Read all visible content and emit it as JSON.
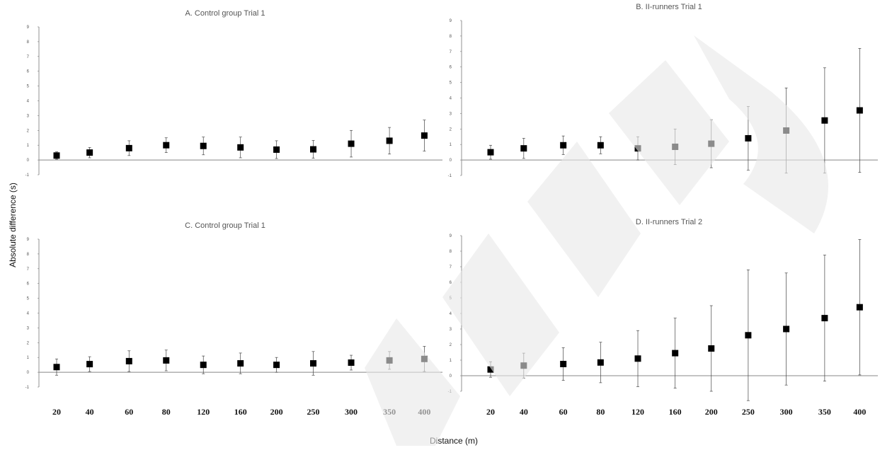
{
  "chart_data": {
    "type": "scatter",
    "layout": "2x2 panels",
    "ylabel": "Absolute difference (s)",
    "xlabel": "Distance (m)",
    "categories": [
      "20",
      "40",
      "60",
      "80",
      "120",
      "160",
      "200",
      "250",
      "300",
      "350",
      "400"
    ],
    "ylim": [
      -1,
      9
    ],
    "yticks": [
      -1,
      0,
      1,
      2,
      3,
      4,
      5,
      6,
      7,
      8,
      9
    ],
    "marker_color": "#000000",
    "zero_line_color": "#888888",
    "panels": [
      {
        "title": "A. Control group Trial 1",
        "values": [
          0.3,
          0.5,
          0.8,
          1.0,
          0.95,
          0.85,
          0.7,
          0.72,
          1.1,
          1.3,
          1.65
        ],
        "errors": [
          0.25,
          0.35,
          0.5,
          0.5,
          0.6,
          0.7,
          0.6,
          0.6,
          0.9,
          0.9,
          1.05
        ]
      },
      {
        "title": "B. II-runners Trial 1",
        "values": [
          0.5,
          0.75,
          0.95,
          0.95,
          0.75,
          0.85,
          1.05,
          1.4,
          1.9,
          2.55,
          3.2
        ],
        "errors": [
          0.45,
          0.65,
          0.6,
          0.55,
          0.75,
          1.15,
          1.55,
          2.05,
          2.75,
          3.4,
          4.0
        ]
      },
      {
        "title": "C. Control group Trial 1",
        "values": [
          0.35,
          0.55,
          0.75,
          0.8,
          0.5,
          0.6,
          0.5,
          0.6,
          0.65,
          0.8,
          0.9
        ],
        "errors": [
          0.55,
          0.5,
          0.7,
          0.7,
          0.6,
          0.7,
          0.5,
          0.8,
          0.5,
          0.6,
          0.85
        ]
      },
      {
        "title": "D. II-runners Trial 2",
        "values": [
          0.4,
          0.65,
          0.75,
          0.85,
          1.1,
          1.45,
          1.75,
          2.6,
          3.0,
          3.7,
          4.4
        ],
        "errors": [
          0.5,
          0.8,
          1.05,
          1.3,
          1.8,
          2.25,
          2.75,
          4.2,
          3.6,
          4.05,
          4.35
        ]
      }
    ]
  }
}
